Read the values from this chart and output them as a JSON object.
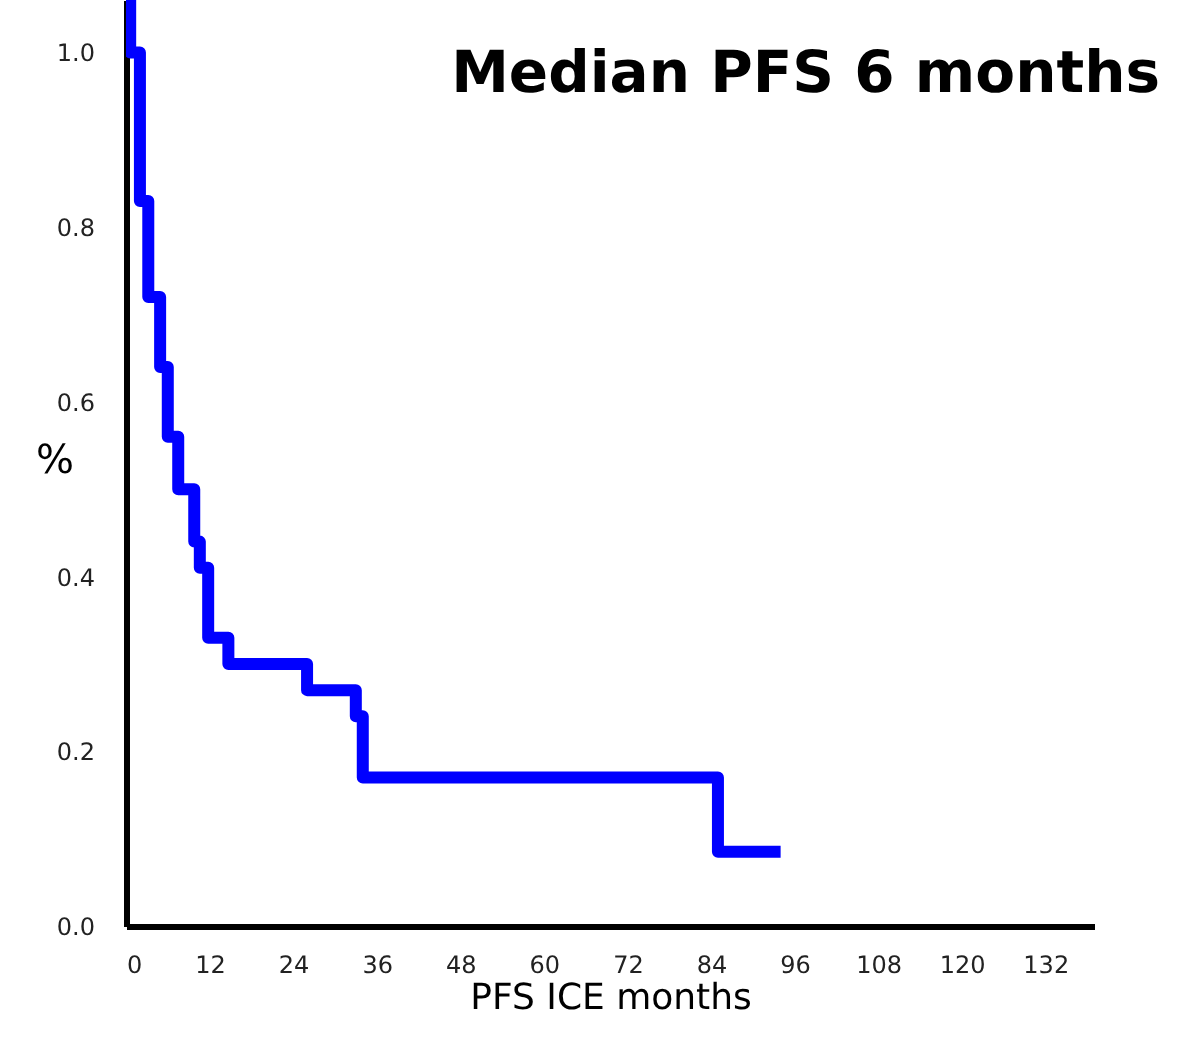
{
  "chart_data": {
    "type": "step",
    "title": "Median PFS 6 months",
    "xlabel": "PFS ICE months",
    "ylabel": "%",
    "x": [
      0,
      0.6,
      2,
      3.2,
      4.9,
      6,
      7.5,
      9.8,
      10.6,
      11.8,
      14.7,
      26,
      33,
      34,
      85,
      94
    ],
    "series": [
      {
        "color": "#0000ff",
        "values": [
          1.06,
          1.0,
          0.83,
          0.72,
          0.64,
          0.56,
          0.5,
          0.44,
          0.41,
          0.33,
          0.3,
          0.27,
          0.24,
          0.17,
          0.085,
          0.085
        ]
      }
    ],
    "xlim": [
      0,
      139
    ],
    "ylim": [
      0,
      1.06
    ],
    "xticks": [
      0,
      12,
      24,
      36,
      48,
      60,
      72,
      84,
      96,
      108,
      120,
      132
    ],
    "yticks": [
      {
        "value": 0,
        "label": "0.0"
      },
      0.2,
      0.4,
      0.6,
      0.8,
      {
        "value": 1,
        "label": "1.0"
      }
    ],
    "grid": false,
    "marker": "none",
    "line_style": "solid"
  }
}
